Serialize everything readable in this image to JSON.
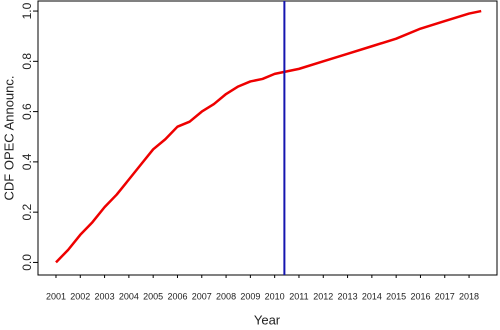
{
  "chart_data": {
    "type": "line",
    "xlabel": "Year",
    "ylabel": "CDF OPEC Announc.",
    "x": [
      2001.0,
      2001.5,
      2002.0,
      2002.5,
      2003.0,
      2003.5,
      2004.0,
      2004.5,
      2005.0,
      2005.5,
      2006.0,
      2006.5,
      2007.0,
      2007.5,
      2008.0,
      2008.5,
      2009.0,
      2009.5,
      2010.0,
      2010.5,
      2011.0,
      2012.0,
      2013.0,
      2014.0,
      2015.0,
      2016.0,
      2017.0,
      2018.0,
      2018.5
    ],
    "series": [
      {
        "name": "CDF",
        "color": "#ee0000",
        "values": [
          0.0,
          0.05,
          0.11,
          0.16,
          0.22,
          0.27,
          0.33,
          0.39,
          0.45,
          0.49,
          0.54,
          0.56,
          0.6,
          0.63,
          0.67,
          0.7,
          0.72,
          0.73,
          0.75,
          0.76,
          0.77,
          0.8,
          0.83,
          0.86,
          0.89,
          0.93,
          0.96,
          0.99,
          1.0
        ]
      }
    ],
    "vline": {
      "x": 2010.4,
      "color": "#1515b0"
    },
    "xlim": [
      2000.26,
      2019.15
    ],
    "ylim": [
      -0.05,
      1.04
    ],
    "xticks": [
      2001,
      2002,
      2003,
      2004,
      2005,
      2006,
      2007,
      2008,
      2009,
      2010,
      2011,
      2012,
      2013,
      2014,
      2015,
      2016,
      2017,
      2018
    ],
    "yticks": [
      {
        "value": 0,
        "label": "0.0"
      },
      0.2,
      0.4,
      0.6,
      0.8,
      {
        "value": 1,
        "label": "1.0"
      }
    ],
    "grid": false
  }
}
